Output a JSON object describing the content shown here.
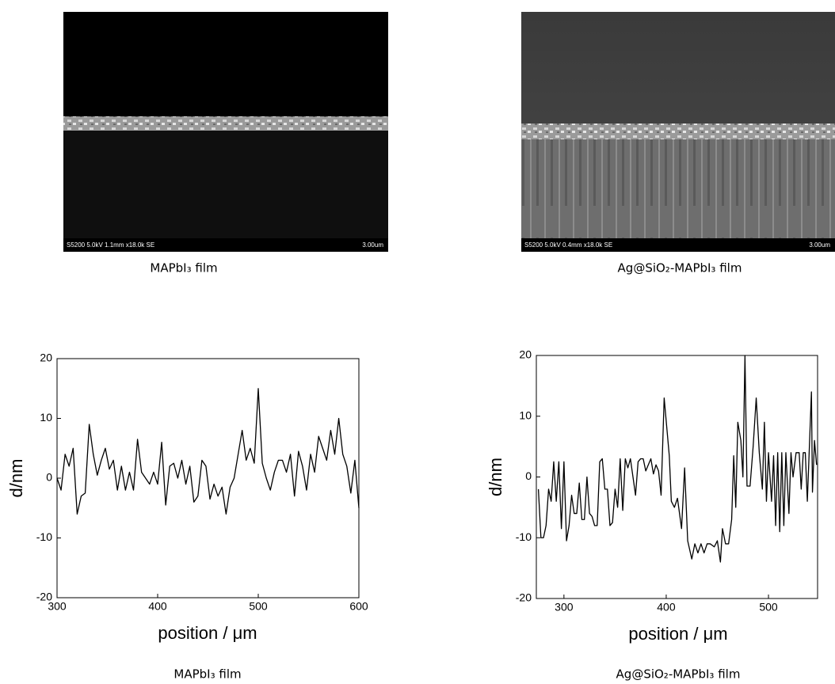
{
  "images": [
    {
      "info": "S5200 5.0kV 1.1mm x18.0k SE",
      "scale": "3.00um",
      "caption": "MAPbI₃ film"
    },
    {
      "info": "S5200 5.0kV 0.4mm x18.0k SE",
      "scale": "3.00um",
      "caption": "Ag@SiO₂-MAPbI₃ film"
    }
  ],
  "chart_data": [
    {
      "type": "line",
      "x_label": "position / μm",
      "y_label": "d/nm",
      "caption": "MAPbI₃ film",
      "color": "#000000",
      "xlim": [
        300,
        600
      ],
      "xticks": [
        300,
        400,
        500,
        600
      ],
      "ylim": [
        -20,
        20
      ],
      "yticks": [
        -20,
        -10,
        0,
        10,
        20
      ],
      "x": [
        300,
        304,
        308,
        312,
        316,
        320,
        324,
        328,
        332,
        336,
        340,
        344,
        348,
        352,
        356,
        360,
        364,
        368,
        372,
        376,
        380,
        384,
        388,
        392,
        396,
        400,
        404,
        408,
        412,
        416,
        420,
        424,
        428,
        432,
        436,
        440,
        444,
        448,
        452,
        456,
        460,
        464,
        468,
        472,
        476,
        480,
        484,
        488,
        492,
        496,
        500,
        504,
        508,
        512,
        516,
        520,
        524,
        528,
        532,
        536,
        540,
        544,
        548,
        552,
        556,
        560,
        564,
        568,
        572,
        576,
        580,
        584,
        588,
        592,
        596,
        600
      ],
      "values": [
        0,
        -2,
        4,
        2,
        5,
        -6,
        -3,
        -2.5,
        9,
        4,
        0.5,
        3,
        5,
        1.5,
        3,
        -2,
        2,
        -2,
        1,
        -2,
        6.5,
        1,
        0,
        -1,
        1,
        -1,
        6,
        -4.5,
        2,
        2.5,
        0,
        3,
        -1,
        2,
        -4,
        -3,
        3,
        2,
        -3.5,
        -1,
        -3,
        -1.5,
        -6,
        -1.5,
        0,
        4,
        8,
        3,
        5,
        2.5,
        15,
        2.5,
        0,
        -2,
        1,
        3,
        3,
        1,
        4,
        -3,
        4.5,
        2,
        -2,
        4,
        1,
        7,
        5,
        3,
        8,
        4,
        10,
        4,
        2,
        -2.5,
        3,
        -5
      ]
    },
    {
      "type": "line",
      "x_label": "position / μm",
      "y_label": "d/nm",
      "caption": "Ag@SiO₂-MAPbI₃ film",
      "color": "#000000",
      "xlim": [
        273,
        548
      ],
      "xticks": [
        300,
        400,
        500
      ],
      "ylim": [
        -20,
        20
      ],
      "yticks": [
        -20,
        -10,
        0,
        10,
        20
      ],
      "x": [
        275,
        277.5,
        280,
        282.5,
        285,
        287.5,
        290,
        292.5,
        295,
        297.5,
        300,
        302.5,
        305,
        307.5,
        310,
        312.5,
        315,
        317.5,
        320,
        322.5,
        325,
        327.5,
        330,
        332.5,
        335,
        337.5,
        340,
        342.5,
        345,
        347.5,
        350,
        352.5,
        355,
        357.5,
        360,
        362.5,
        365,
        367.5,
        370,
        372.5,
        375,
        377.5,
        380,
        382.5,
        385,
        387.5,
        390,
        392.5,
        395,
        398,
        403,
        405,
        408,
        411,
        415,
        418,
        421,
        425,
        428,
        431,
        434,
        437,
        440,
        443,
        447,
        450,
        453,
        455,
        458,
        461,
        464,
        466,
        468,
        470,
        473,
        475,
        477,
        479,
        482,
        485,
        488,
        491,
        494,
        496,
        498,
        500,
        503,
        505,
        507,
        509,
        511,
        513,
        515,
        517,
        520,
        522,
        524,
        527,
        530,
        532,
        534,
        536,
        538,
        540,
        542,
        543,
        545,
        547
      ],
      "values": [
        -2,
        -10,
        -10,
        -8,
        -2,
        -4,
        2.5,
        -4,
        2.5,
        -8.5,
        2.5,
        -10.5,
        -8,
        -3,
        -6,
        -6,
        -1,
        -7,
        -7,
        0,
        -6,
        -6.5,
        -8,
        -8,
        2.5,
        3,
        -2,
        -2,
        -8,
        -7.5,
        -2,
        -5,
        3,
        -5.5,
        3,
        1.5,
        3,
        0,
        -3,
        2.5,
        3,
        3,
        1,
        2,
        3,
        0.5,
        2,
        1,
        -3,
        13,
        3.5,
        -4,
        -5,
        -3.5,
        -8.5,
        1.5,
        -10.5,
        -13.5,
        -11,
        -12.5,
        -11,
        -12.5,
        -11,
        -11,
        -11.5,
        -10.5,
        -14,
        -8.5,
        -11,
        -11,
        -7,
        3.5,
        -5,
        9,
        6,
        0,
        20,
        -1.5,
        -1.5,
        5,
        13,
        4,
        -2,
        9,
        -4,
        4,
        -4,
        3.5,
        -8,
        4,
        -9,
        4,
        -8,
        4,
        -6,
        4,
        0,
        4,
        4,
        -2,
        4,
        4,
        -4,
        5,
        14,
        -2.5,
        6,
        2
      ]
    }
  ]
}
